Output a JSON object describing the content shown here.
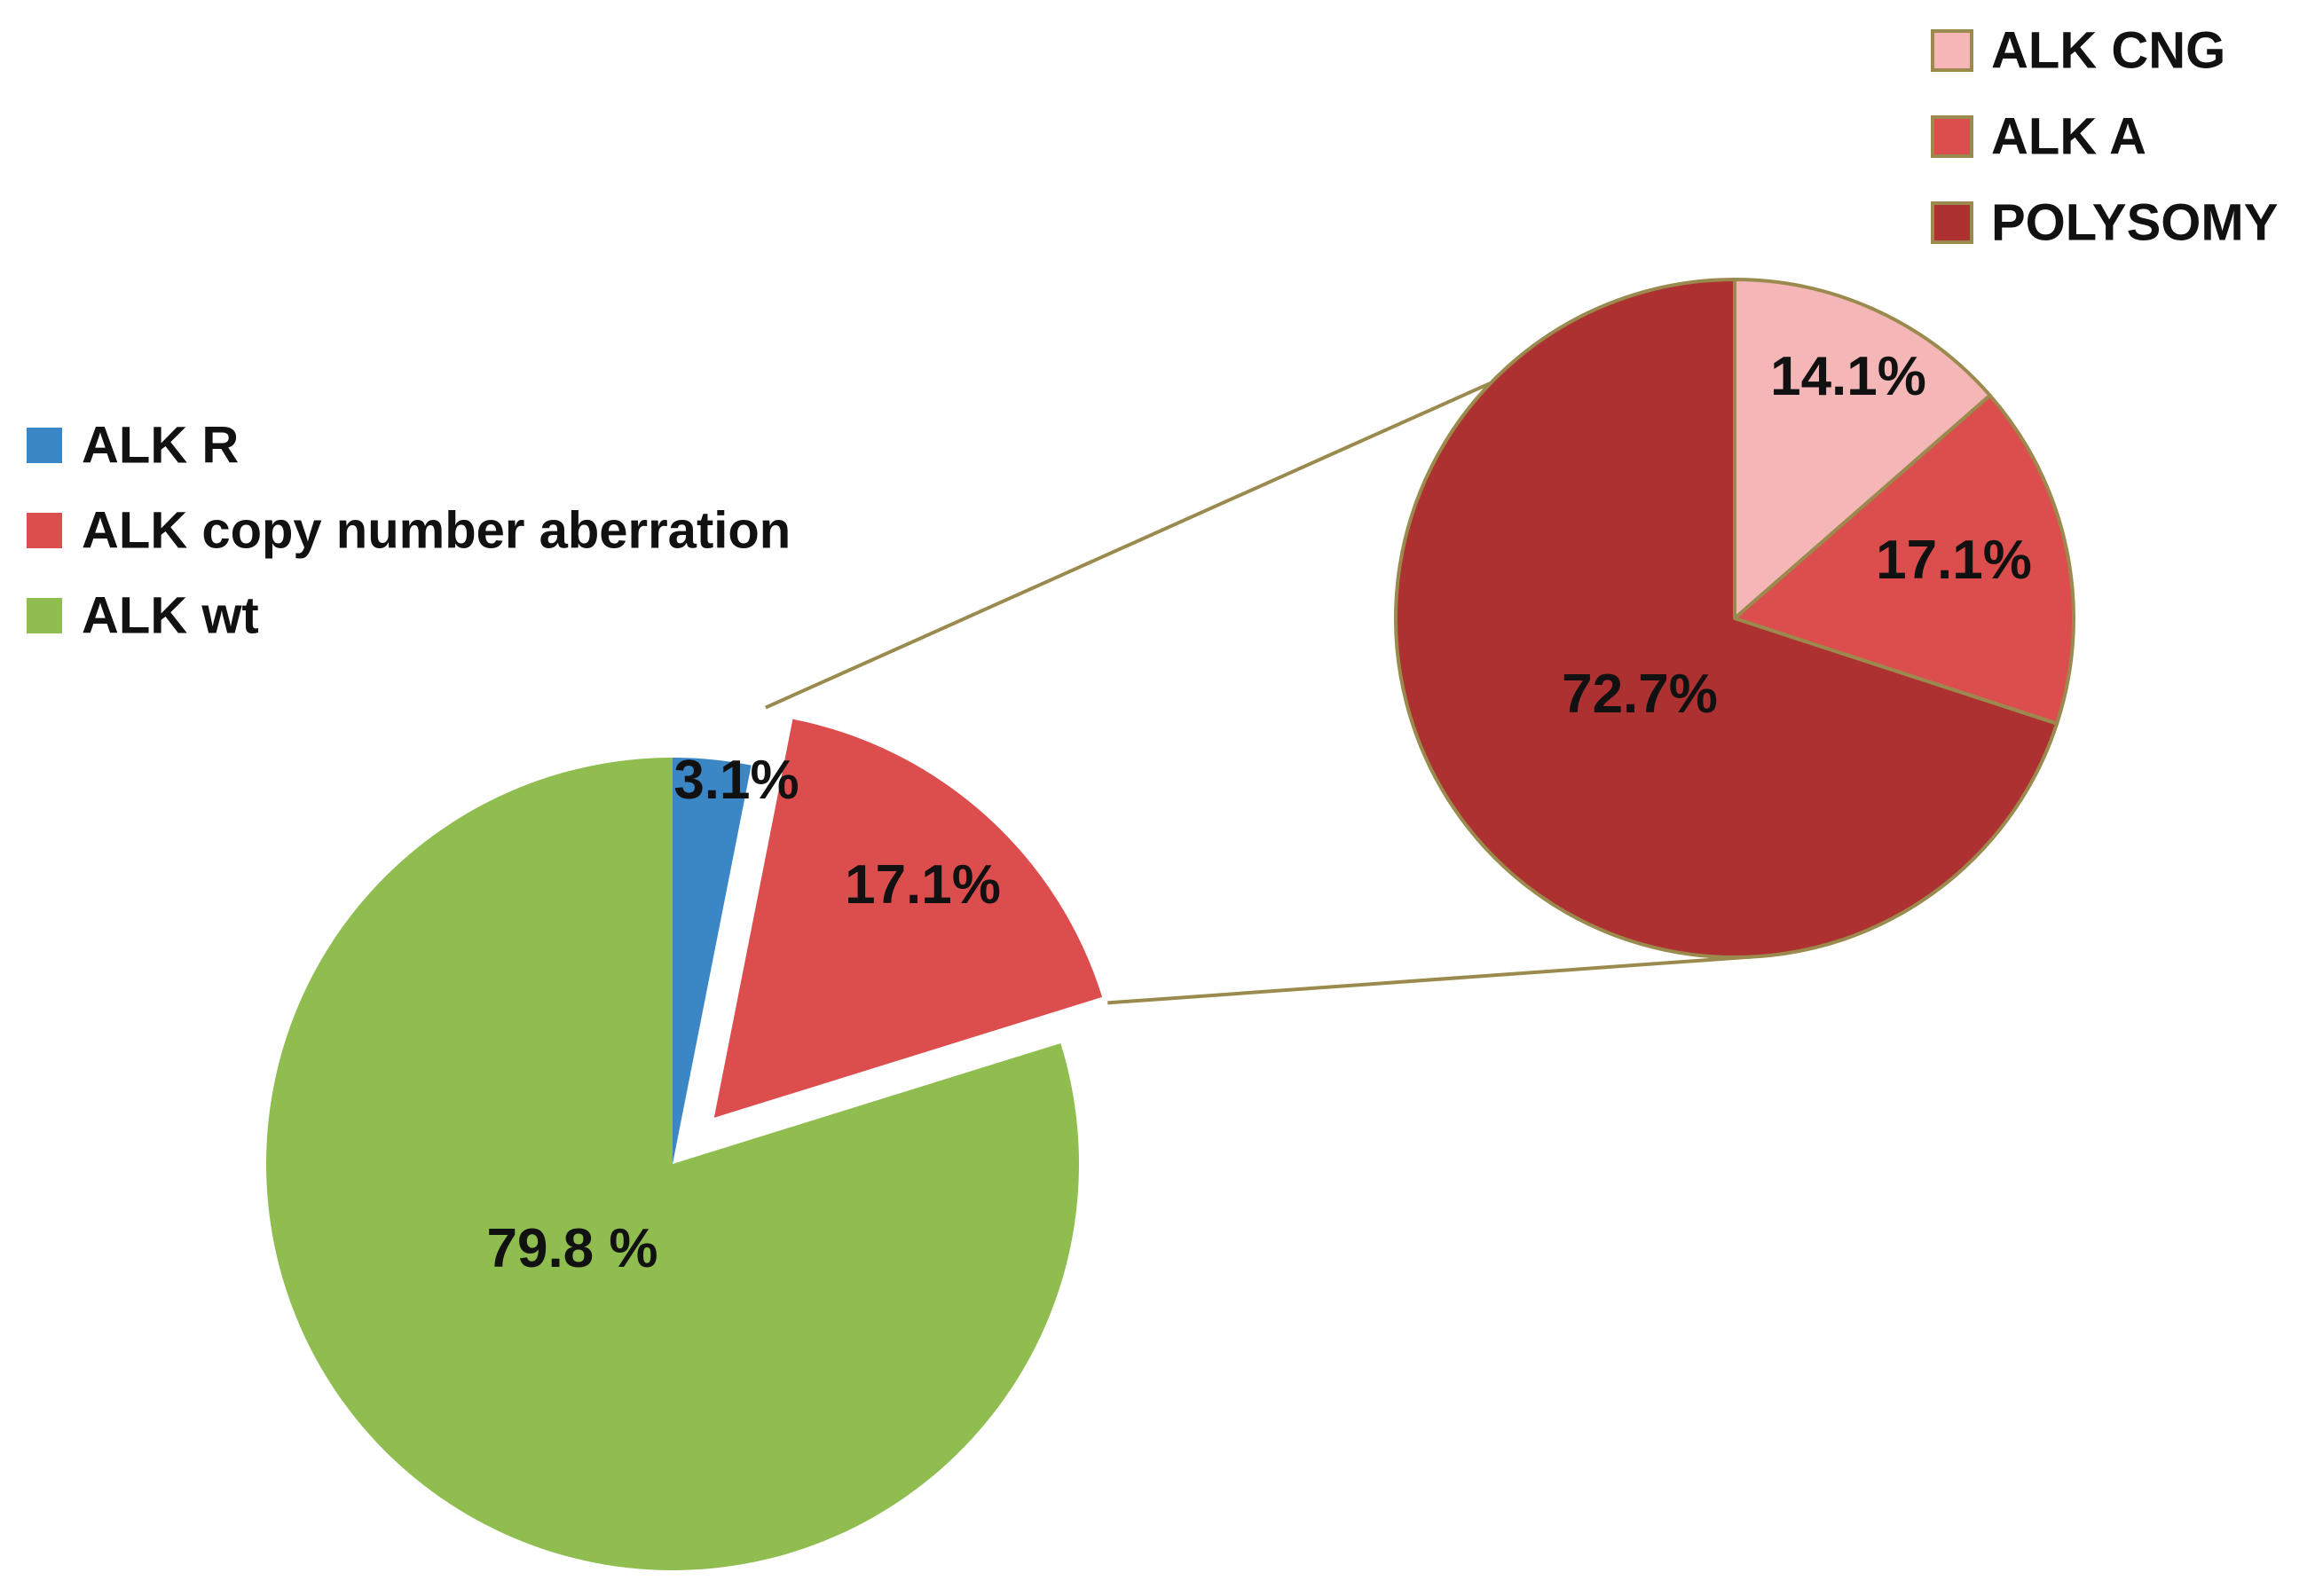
{
  "chart_data": [
    {
      "type": "pie",
      "unit": "%",
      "categories": [
        "ALK R",
        "ALK copy number aberration",
        "ALK wt"
      ],
      "values": [
        3.1,
        17.1,
        79.8
      ],
      "labels": [
        "3.1%",
        "17.1%",
        "79.8 %"
      ],
      "colors": [
        "#3b87c6",
        "#dc4e4e",
        "#8fbd4f"
      ],
      "exploded": "ALK copy number aberration",
      "legend": {
        "position": "left",
        "entries": [
          "ALK R",
          "ALK copy number aberration",
          "ALK wt"
        ]
      }
    },
    {
      "type": "pie",
      "unit": "%",
      "breakdown_of": "ALK copy number aberration",
      "categories": [
        "ALK CNG",
        "ALK A",
        "POLYSOMY"
      ],
      "values": [
        14.1,
        17.1,
        72.7
      ],
      "labels": [
        "14.1%",
        "17.1%",
        "72.7%"
      ],
      "colors": [
        "#f4b6b6",
        "#dc4e4e",
        "#ad3131"
      ],
      "border_color": "#9b8a4e",
      "legend": {
        "position": "top-right",
        "entries": [
          "ALK CNG",
          "ALK A",
          "POLYSOMY"
        ]
      }
    }
  ]
}
